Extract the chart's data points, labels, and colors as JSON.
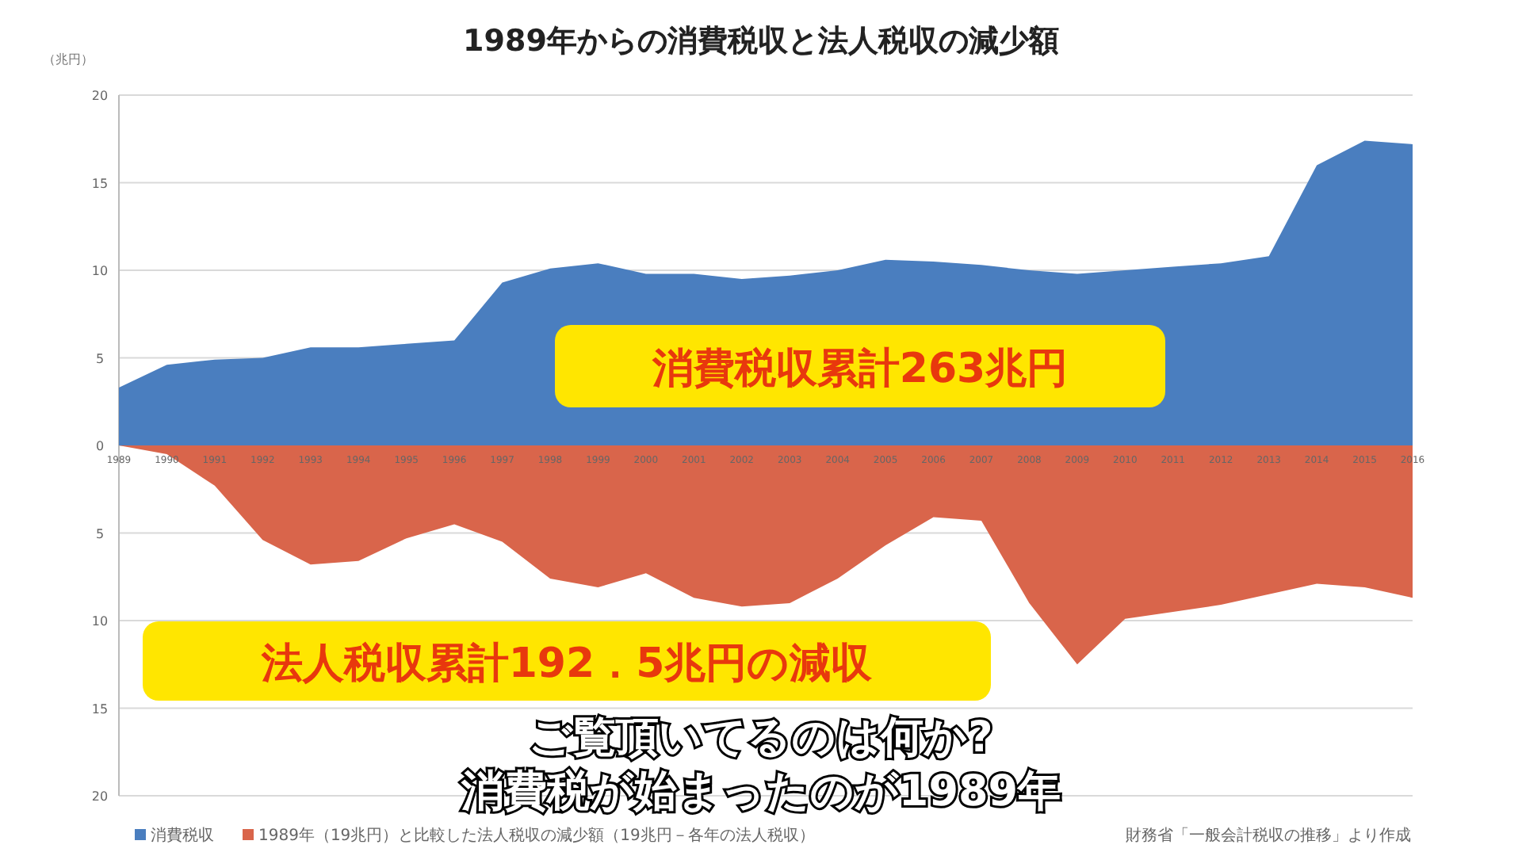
{
  "chart_data": {
    "type": "area",
    "title": "1989年からの消費税収と法人税収の減少額",
    "ylabel": "（兆円）",
    "categories": [
      "1989",
      "1990",
      "1991",
      "1992",
      "1993",
      "1994",
      "1995",
      "1996",
      "1997",
      "1998",
      "1999",
      "2000",
      "2001",
      "2002",
      "2003",
      "2004",
      "2005",
      "2006",
      "2007",
      "2008",
      "2009",
      "2010",
      "2011",
      "2012",
      "2013",
      "2014",
      "2015",
      "2016"
    ],
    "series": [
      {
        "name": "消費税収",
        "color": "#4a7ebf",
        "values": [
          3.3,
          4.6,
          4.9,
          5.0,
          5.6,
          5.6,
          5.8,
          6.0,
          9.3,
          10.1,
          10.4,
          9.8,
          9.8,
          9.5,
          9.7,
          10.0,
          10.6,
          10.5,
          10.3,
          10.0,
          9.8,
          10.0,
          10.2,
          10.4,
          10.8,
          16.0,
          17.4,
          17.2
        ]
      },
      {
        "name": "1989年（19兆円）と比較した法人税収の減少額（19兆円－各年の法人税収）",
        "color": "#d9654b",
        "values": [
          0,
          -0.5,
          -2.3,
          -5.4,
          -6.8,
          -6.6,
          -5.3,
          -4.5,
          -5.5,
          -7.6,
          -8.1,
          -7.3,
          -8.7,
          -9.2,
          -9.0,
          -7.6,
          -5.7,
          -4.1,
          -4.3,
          -9.0,
          -12.5,
          -9.9,
          -9.5,
          -9.1,
          -8.5,
          -7.9,
          -8.1,
          -8.7
        ]
      }
    ],
    "ylim": [
      -20,
      20
    ],
    "yticks": [
      {
        "value": -20,
        "label": "20"
      },
      {
        "value": -15,
        "label": "15"
      },
      {
        "value": -10,
        "label": "10"
      },
      {
        "value": -5,
        "label": "5"
      },
      0,
      5,
      10,
      15,
      20
    ],
    "grid": "y",
    "legend": "bottom",
    "annotations": [
      "消費税収累計263兆円",
      "法人税収累計192．5兆円の減収",
      "財務省「一般会計税収の推移」より作成",
      "ご覧頂いてるのは何か?",
      "消費税が始まったのが1989年"
    ]
  }
}
